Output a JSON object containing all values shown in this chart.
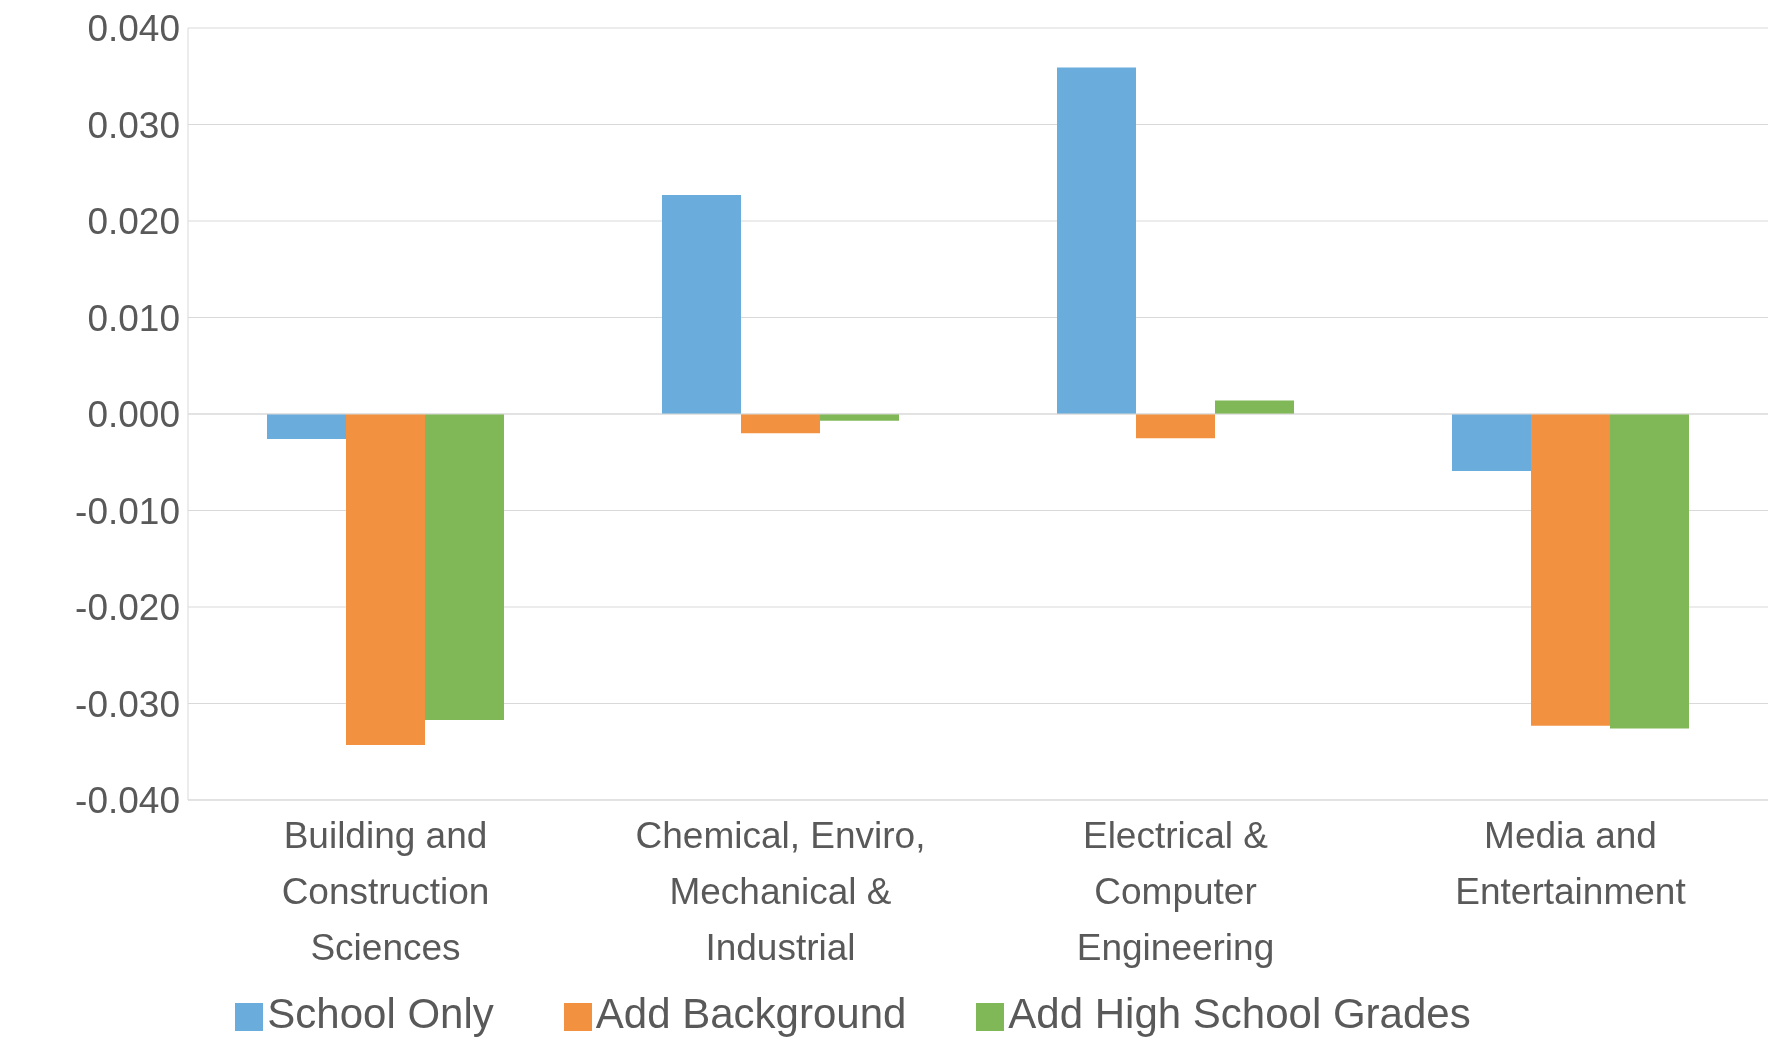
{
  "chart_data": {
    "type": "bar",
    "categories": [
      "Building and Construction Sciences",
      "Chemical, Enviro, Mechanical & Industrial",
      "Electrical & Computer Engineering",
      "Media and Entertainment"
    ],
    "series": [
      {
        "name": "School Only",
        "color": "#6aaddc",
        "values": [
          -0.0026,
          0.0227,
          0.0359,
          -0.0059
        ]
      },
      {
        "name": "Add Background",
        "color": "#f29240",
        "values": [
          -0.0343,
          -0.002,
          -0.0025,
          -0.0323
        ]
      },
      {
        "name": "Add High School Grades",
        "color": "#80b857",
        "values": [
          -0.0317,
          -0.0007,
          0.0014,
          -0.0326
        ]
      }
    ],
    "ylim": [
      -0.04,
      0.04
    ],
    "yticks": [
      {
        "value": -0.04,
        "label": "-0.040"
      },
      {
        "value": -0.03,
        "label": "-0.030"
      },
      {
        "value": -0.02,
        "label": "-0.020"
      },
      {
        "value": -0.01,
        "label": "-0.010"
      },
      {
        "value": 0,
        "label": "0.000"
      },
      {
        "value": 0.01,
        "label": "0.010"
      },
      {
        "value": 0.02,
        "label": "0.020"
      },
      {
        "value": 0.03,
        "label": "0.030"
      },
      {
        "value": 0.04,
        "label": "0.040"
      }
    ],
    "grid": "y",
    "legend": "bottom"
  }
}
